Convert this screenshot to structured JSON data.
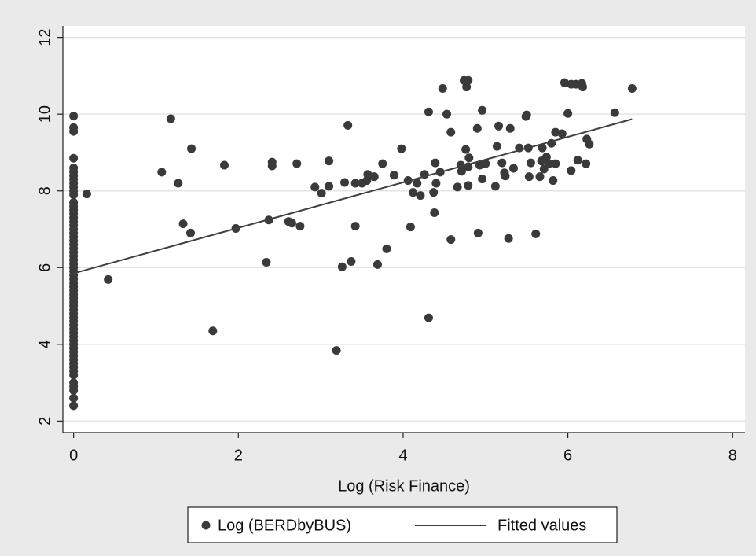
{
  "chart_data": {
    "type": "scatter",
    "xlabel": "Log (Risk Finance)",
    "xlim": [
      -0.13,
      8.15
    ],
    "ylim": [
      1.7,
      12.3
    ],
    "xticks": [
      0,
      2,
      4,
      6,
      8
    ],
    "yticks": [
      2,
      4,
      6,
      8,
      10,
      12
    ],
    "grid": true,
    "legend": "bottom",
    "series": [
      {
        "name": "Log (BERDbyBUS)",
        "style": "points",
        "color": "#3a3a3a",
        "x": [
          0,
          0,
          0,
          0,
          0,
          0,
          0,
          0,
          0,
          0,
          0,
          0,
          0,
          0,
          0,
          0,
          0,
          0,
          0,
          0,
          0,
          0,
          0,
          0,
          0,
          0,
          0,
          0,
          0,
          0,
          0,
          0,
          0,
          0,
          0,
          0,
          0,
          0,
          0,
          0,
          0,
          0,
          0,
          0,
          0,
          0,
          0,
          0,
          0,
          0,
          0,
          0,
          0,
          0,
          0,
          0,
          0,
          0,
          0,
          0,
          0,
          0,
          0,
          0.16,
          0.42,
          1.07,
          1.18,
          1.27,
          1.33,
          1.42,
          1.43,
          1.69,
          1.83,
          1.97,
          2.34,
          2.37,
          2.41,
          2.41,
          2.61,
          2.65,
          2.71,
          2.75,
          2.93,
          3.01,
          3.1,
          3.1,
          3.19,
          3.26,
          3.29,
          3.33,
          3.37,
          3.42,
          3.42,
          3.5,
          3.56,
          3.57,
          3.65,
          3.69,
          3.75,
          3.8,
          3.89,
          3.98,
          4.06,
          4.09,
          4.12,
          4.17,
          4.21,
          4.26,
          4.31,
          4.31,
          4.37,
          4.38,
          4.39,
          4.4,
          4.45,
          4.48,
          4.53,
          4.58,
          4.58,
          4.66,
          4.7,
          4.71,
          4.74,
          4.76,
          4.77,
          4.79,
          4.79,
          4.79,
          4.8,
          4.9,
          4.91,
          4.93,
          4.96,
          4.96,
          5.0,
          5.12,
          5.14,
          5.16,
          5.2,
          5.23,
          5.24,
          5.28,
          5.3,
          5.34,
          5.41,
          5.49,
          5.5,
          5.52,
          5.53,
          5.55,
          5.61,
          5.66,
          5.68,
          5.69,
          5.71,
          5.74,
          5.77,
          5.8,
          5.82,
          5.85,
          5.85,
          5.93,
          5.96,
          6.0,
          6.04,
          6.04,
          6.1,
          6.12,
          6.17,
          6.18,
          6.22,
          6.23,
          6.26,
          6.57,
          6.78
        ],
        "values": [
          9.95,
          9.65,
          9.55,
          8.85,
          8.6,
          8.5,
          8.4,
          8.3,
          8.2,
          8.1,
          8.0,
          7.9,
          7.7,
          7.6,
          7.5,
          7.4,
          7.3,
          7.2,
          7.1,
          7.0,
          6.9,
          6.8,
          6.7,
          6.6,
          6.5,
          6.4,
          6.3,
          6.2,
          6.1,
          6.0,
          5.9,
          5.8,
          5.7,
          5.6,
          5.5,
          5.4,
          5.3,
          5.2,
          5.1,
          5.0,
          4.9,
          4.8,
          4.7,
          4.6,
          4.5,
          4.4,
          4.3,
          4.2,
          4.1,
          4.0,
          3.9,
          3.8,
          3.7,
          3.6,
          3.5,
          3.4,
          3.3,
          3.2,
          3.0,
          2.9,
          2.8,
          2.6,
          2.4,
          7.92,
          5.69,
          8.49,
          9.88,
          8.2,
          7.14,
          6.9,
          9.1,
          4.35,
          8.67,
          7.02,
          6.14,
          7.24,
          8.75,
          8.65,
          7.2,
          7.16,
          8.71,
          7.08,
          8.1,
          7.94,
          8.12,
          8.78,
          3.84,
          6.02,
          8.22,
          9.71,
          6.16,
          8.2,
          7.08,
          8.2,
          8.27,
          8.43,
          8.37,
          6.08,
          8.71,
          6.49,
          8.41,
          9.1,
          8.27,
          7.06,
          7.96,
          8.2,
          7.88,
          8.43,
          4.69,
          10.06,
          7.96,
          7.43,
          8.73,
          8.2,
          8.49,
          10.67,
          10.0,
          6.73,
          9.53,
          8.1,
          8.67,
          8.51,
          10.88,
          9.08,
          10.71,
          10.88,
          8.14,
          8.63,
          8.86,
          9.63,
          6.9,
          8.67,
          10.1,
          8.31,
          8.71,
          8.12,
          9.16,
          9.69,
          8.73,
          8.47,
          8.39,
          6.76,
          9.63,
          8.59,
          9.12,
          9.94,
          9.98,
          9.12,
          8.37,
          8.73,
          6.88,
          8.37,
          8.78,
          9.12,
          8.57,
          8.88,
          8.71,
          9.24,
          8.27,
          8.71,
          9.53,
          9.49,
          10.82,
          10.02,
          10.78,
          8.53,
          10.78,
          8.8,
          10.8,
          10.71,
          8.71,
          9.35,
          9.22,
          10.04,
          10.67
        ]
      },
      {
        "name": "Fitted values",
        "style": "line",
        "color": "#3f3f3f",
        "x": [
          0,
          6.78
        ],
        "values": [
          5.85,
          9.87
        ]
      }
    ]
  }
}
